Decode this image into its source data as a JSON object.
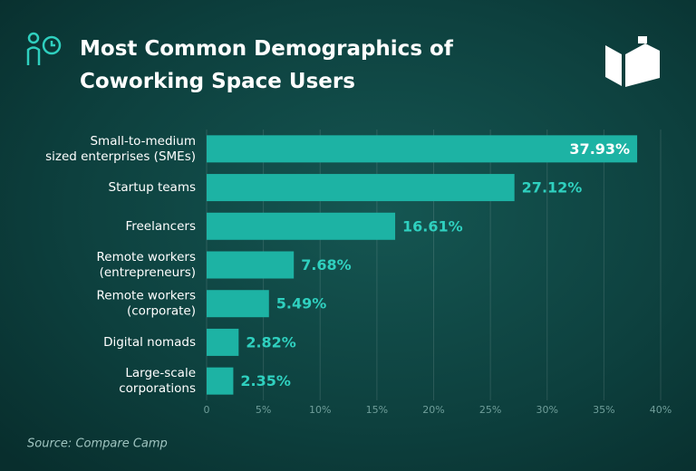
{
  "chart_data": {
    "type": "bar",
    "orientation": "horizontal",
    "title": "Most Common Demographics of\nCoworking Space Users",
    "categories": [
      "Small-to-medium\nsized enterprises (SMEs)",
      "Startup teams",
      "Freelancers",
      "Remote workers\n(entrepreneurs)",
      "Remote workers\n(corporate)",
      "Digital nomads",
      "Large-scale\ncorporations"
    ],
    "values": [
      37.93,
      27.12,
      16.61,
      7.68,
      5.49,
      2.82,
      2.35
    ],
    "value_labels": [
      "37.93%",
      "27.12%",
      "16.61%",
      "7.68%",
      "5.49%",
      "2.82%",
      "2.35%"
    ],
    "color": "#1db3a4",
    "xlim": [
      0,
      40
    ],
    "xticks": [
      0,
      {
        "value": 5,
        "label": "5%"
      },
      {
        "value": 10,
        "label": "10%"
      },
      {
        "value": 15,
        "label": "15%"
      },
      {
        "value": 20,
        "label": "20%"
      },
      {
        "value": 25,
        "label": "25%"
      },
      {
        "value": 30,
        "label": "30%"
      },
      {
        "value": 35,
        "label": "35%"
      },
      {
        "value": 40,
        "label": "40%"
      }
    ],
    "grid": true,
    "source": "Source: Compare Camp"
  }
}
